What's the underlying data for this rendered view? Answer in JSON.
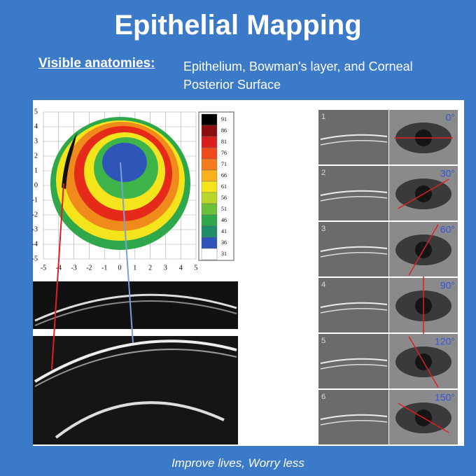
{
  "header": {
    "title": "Epithelial Mapping",
    "label": "Visible anatomies:",
    "description": "Epithelium, Bowman's layer, and Corneal Posterior Surface"
  },
  "map": {
    "y_ticks": [
      "5",
      "4",
      "3",
      "2",
      "1",
      "0",
      "-1",
      "-2",
      "-3",
      "-4",
      "-5"
    ],
    "x_ticks": [
      "-5",
      "-4",
      "-3",
      "-2",
      "-1",
      "0",
      "1",
      "2",
      "3",
      "4",
      "5"
    ],
    "scale": [
      "91",
      "86",
      "81",
      "76",
      "71",
      "66",
      "61",
      "56",
      "51",
      "46",
      "41",
      "36",
      "31"
    ]
  },
  "panels": [
    {
      "number": "1",
      "angle": "0°"
    },
    {
      "number": "2",
      "angle": "30°"
    },
    {
      "number": "3",
      "angle": "60°"
    },
    {
      "number": "4",
      "angle": "90°"
    },
    {
      "number": "5",
      "angle": "120°"
    },
    {
      "number": "6",
      "angle": "150°"
    }
  ],
  "footer": "Improve lives, Worry less"
}
